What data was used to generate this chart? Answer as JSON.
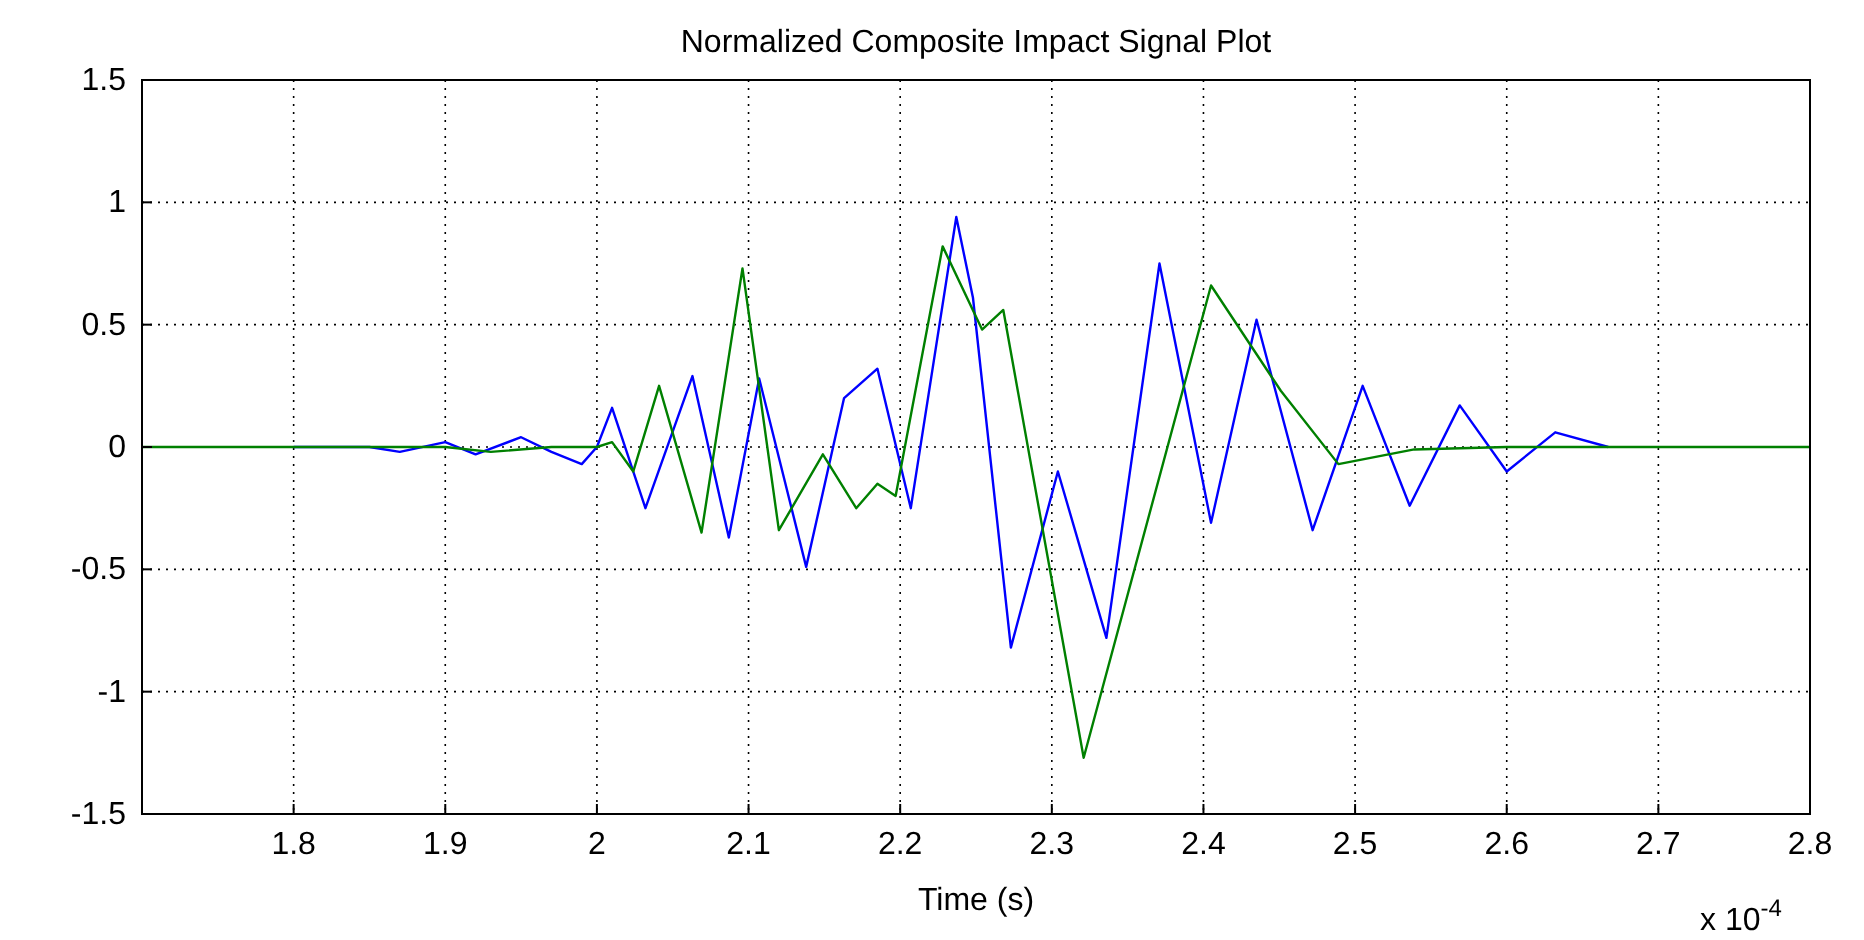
{
  "chart_data": {
    "type": "line",
    "title": "Normalized Composite Impact Signal Plot",
    "xlabel": "Time (s)",
    "annotations": [
      "x 10$^{-4}$"
    ],
    "xlim": [
      1.7,
      2.8
    ],
    "xticks": [
      1.8,
      1.9,
      2,
      2.1,
      2.2,
      2.3,
      2.4,
      2.5,
      2.6,
      2.7,
      2.8
    ],
    "ylim": [
      -1.5,
      1.5
    ],
    "yticks": [
      -1.5,
      -1,
      -0.5,
      0,
      0.5,
      1,
      1.5
    ],
    "grid": true,
    "line_style": "solid",
    "series": [
      {
        "color": "#0000ff",
        "x": [
          1.8,
          1.85,
          1.87,
          1.9,
          1.92,
          1.95,
          1.97,
          1.99,
          2.0,
          2.01,
          2.032,
          2.063,
          2.087,
          2.107,
          2.138,
          2.163,
          2.185,
          2.207,
          2.237,
          2.248,
          2.273,
          2.304,
          2.336,
          2.371,
          2.405,
          2.435,
          2.472,
          2.505,
          2.536,
          2.569,
          2.6,
          2.632,
          2.667
        ],
        "values": [
          0,
          0,
          -0.02,
          0.02,
          -0.03,
          0.04,
          -0.02,
          -0.07,
          0,
          0.16,
          -0.25,
          0.29,
          -0.37,
          0.28,
          -0.49,
          0.2,
          0.32,
          -0.25,
          0.94,
          0.61,
          -0.82,
          -0.1,
          -0.78,
          0.75,
          -0.31,
          0.52,
          -0.34,
          0.25,
          -0.24,
          0.17,
          -0.1,
          0.06,
          0
        ]
      },
      {
        "color": "#008000",
        "x": [
          1.7,
          1.8,
          1.9,
          1.93,
          1.97,
          2.0,
          2.01,
          2.024,
          2.041,
          2.069,
          2.096,
          2.12,
          2.149,
          2.171,
          2.185,
          2.197,
          2.228,
          2.254,
          2.268,
          2.321,
          2.405,
          2.451,
          2.489,
          2.539,
          2.6,
          2.7,
          2.8
        ],
        "values": [
          0,
          0,
          0,
          -0.02,
          0,
          0,
          0.02,
          -0.1,
          0.25,
          -0.35,
          0.73,
          -0.34,
          -0.03,
          -0.25,
          -0.15,
          -0.2,
          0.82,
          0.48,
          0.56,
          -1.27,
          0.66,
          0.23,
          -0.07,
          -0.01,
          0,
          0,
          0
        ]
      }
    ]
  }
}
